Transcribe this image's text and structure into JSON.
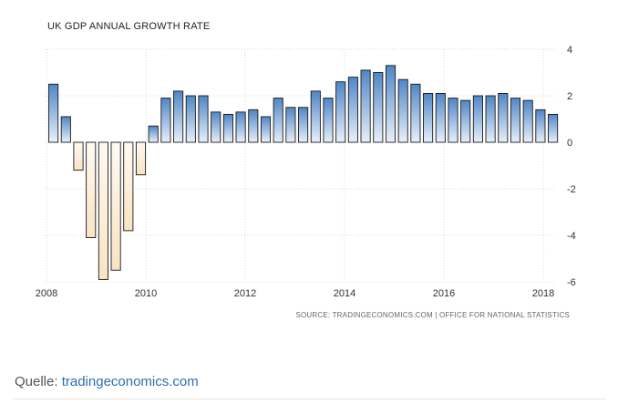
{
  "chart_data": {
    "type": "bar",
    "title": "UK GDP ANNUAL GROWTH RATE",
    "xlabel": "",
    "ylabel": "",
    "ylim": [
      -6,
      4
    ],
    "y_ticks": [
      4,
      2,
      0,
      -2,
      -4,
      -6
    ],
    "x_ticks": [
      "2008",
      "2010",
      "2012",
      "2014",
      "2016",
      "2018"
    ],
    "grid": true,
    "values": [
      2.5,
      1.1,
      -1.2,
      -4.1,
      -5.9,
      -5.5,
      -3.8,
      -1.4,
      0.7,
      1.9,
      2.2,
      2.0,
      2.0,
      1.3,
      1.2,
      1.3,
      1.4,
      1.1,
      1.9,
      1.5,
      1.5,
      2.2,
      1.9,
      2.6,
      2.8,
      3.1,
      3.0,
      3.3,
      2.7,
      2.5,
      2.1,
      2.1,
      1.9,
      1.8,
      2.0,
      2.0,
      2.1,
      1.9,
      1.8,
      1.4,
      1.2
    ],
    "source": "SOURCE: TRADINGECONOMICS.COM | OFFICE FOR NATIONAL STATISTICS",
    "colors": {
      "positive": "#4f86c6",
      "positive_light": "#e8f0fa",
      "negative": "#f9e3c2",
      "negative_light": "#fffaf2",
      "outline": "#1a1a1a"
    }
  },
  "footer": {
    "label": "Quelle: ",
    "link": "tradingeconomics.com"
  }
}
